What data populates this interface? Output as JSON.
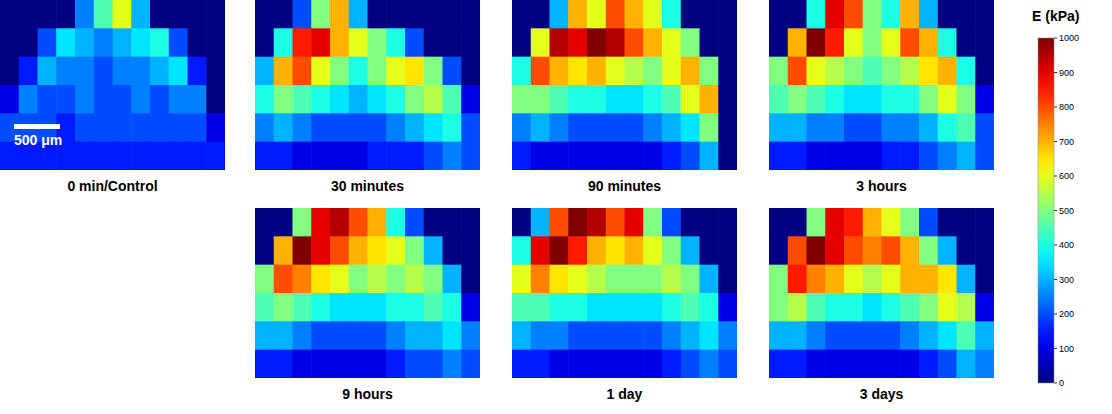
{
  "chart_data": {
    "type": "heatmap",
    "tick_labels": false,
    "scale_bar": "500 μm",
    "colorbar": {
      "label": "E (kPa)",
      "range": [
        0,
        1000
      ],
      "ticks": [
        0,
        100,
        200,
        300,
        400,
        500,
        600,
        700,
        800,
        900,
        1000
      ]
    },
    "panels": [
      {
        "title": "0 min/Control",
        "cells": [
          [
            0,
            0,
            0,
            0,
            250,
            450,
            600,
            300,
            0,
            0,
            0,
            0
          ],
          [
            0,
            0,
            200,
            350,
            300,
            250,
            300,
            350,
            400,
            200,
            0,
            0
          ],
          [
            0,
            150,
            300,
            250,
            250,
            200,
            250,
            250,
            300,
            350,
            150,
            0
          ],
          [
            100,
            250,
            200,
            200,
            250,
            200,
            200,
            250,
            200,
            250,
            250,
            0
          ],
          [
            200,
            200,
            200,
            150,
            200,
            200,
            200,
            200,
            200,
            200,
            200,
            100
          ],
          [
            150,
            150,
            150,
            150,
            150,
            150,
            150,
            150,
            150,
            150,
            150,
            150
          ]
        ]
      },
      {
        "title": "30 minutes",
        "cells": [
          [
            0,
            0,
            200,
            500,
            700,
            300,
            0,
            0,
            0,
            0,
            0,
            0
          ],
          [
            0,
            400,
            850,
            900,
            700,
            600,
            500,
            400,
            200,
            0,
            0,
            0
          ],
          [
            300,
            700,
            800,
            600,
            500,
            400,
            500,
            600,
            650,
            500,
            200,
            0
          ],
          [
            400,
            500,
            450,
            400,
            350,
            300,
            350,
            400,
            500,
            550,
            450,
            100
          ],
          [
            250,
            300,
            250,
            200,
            200,
            200,
            200,
            250,
            300,
            350,
            400,
            200
          ],
          [
            150,
            150,
            100,
            100,
            100,
            100,
            150,
            150,
            150,
            200,
            250,
            200
          ]
        ]
      },
      {
        "title": "90 minutes",
        "cells": [
          [
            0,
            0,
            300,
            700,
            600,
            800,
            700,
            600,
            400,
            0,
            0,
            0
          ],
          [
            0,
            600,
            950,
            900,
            1000,
            950,
            800,
            700,
            600,
            500,
            0,
            0
          ],
          [
            400,
            800,
            700,
            650,
            700,
            600,
            550,
            500,
            600,
            700,
            500,
            0
          ],
          [
            500,
            500,
            450,
            400,
            400,
            350,
            350,
            400,
            450,
            600,
            700,
            0
          ],
          [
            250,
            300,
            250,
            200,
            200,
            200,
            200,
            250,
            300,
            350,
            500,
            0
          ],
          [
            150,
            100,
            100,
            100,
            100,
            100,
            100,
            100,
            150,
            200,
            300,
            0
          ]
        ]
      },
      {
        "title": "3 hours",
        "cells": [
          [
            0,
            0,
            400,
            900,
            800,
            500,
            400,
            700,
            300,
            0,
            0,
            0
          ],
          [
            0,
            700,
            1000,
            850,
            600,
            500,
            600,
            800,
            700,
            400,
            0,
            0
          ],
          [
            500,
            800,
            600,
            550,
            500,
            450,
            500,
            550,
            650,
            700,
            400,
            0
          ],
          [
            450,
            500,
            450,
            400,
            350,
            350,
            400,
            400,
            500,
            600,
            500,
            100
          ],
          [
            300,
            300,
            250,
            250,
            200,
            200,
            250,
            250,
            300,
            400,
            450,
            200
          ],
          [
            150,
            150,
            100,
            100,
            100,
            100,
            150,
            150,
            200,
            250,
            300,
            200
          ]
        ]
      },
      {
        "title": "9 hours",
        "cells": [
          [
            0,
            0,
            500,
            900,
            950,
            800,
            700,
            400,
            200,
            0,
            0,
            0
          ],
          [
            0,
            700,
            1000,
            900,
            800,
            700,
            650,
            600,
            500,
            300,
            0,
            0
          ],
          [
            500,
            800,
            750,
            650,
            600,
            500,
            550,
            500,
            550,
            500,
            300,
            0
          ],
          [
            450,
            500,
            450,
            400,
            350,
            350,
            350,
            400,
            400,
            450,
            400,
            100
          ],
          [
            300,
            300,
            250,
            200,
            200,
            200,
            200,
            250,
            300,
            300,
            350,
            250
          ],
          [
            150,
            150,
            100,
            100,
            100,
            100,
            100,
            150,
            200,
            200,
            250,
            200
          ]
        ]
      },
      {
        "title": "1 day",
        "cells": [
          [
            0,
            300,
            800,
            1000,
            950,
            800,
            900,
            500,
            200,
            0,
            0,
            0
          ],
          [
            400,
            900,
            1000,
            850,
            700,
            650,
            700,
            600,
            500,
            300,
            0,
            0
          ],
          [
            600,
            750,
            650,
            600,
            550,
            500,
            500,
            500,
            550,
            500,
            300,
            0
          ],
          [
            450,
            450,
            400,
            400,
            350,
            350,
            350,
            350,
            400,
            450,
            400,
            100
          ],
          [
            300,
            250,
            250,
            200,
            200,
            200,
            200,
            200,
            250,
            300,
            350,
            250
          ],
          [
            150,
            150,
            100,
            100,
            100,
            100,
            100,
            100,
            150,
            200,
            250,
            200
          ]
        ]
      },
      {
        "title": "3 days",
        "cells": [
          [
            0,
            0,
            500,
            900,
            850,
            700,
            600,
            500,
            200,
            0,
            0,
            0
          ],
          [
            0,
            800,
            1000,
            900,
            800,
            750,
            800,
            700,
            500,
            300,
            0,
            0
          ],
          [
            500,
            850,
            750,
            700,
            600,
            550,
            600,
            700,
            700,
            650,
            300,
            0
          ],
          [
            500,
            550,
            450,
            400,
            400,
            350,
            400,
            450,
            500,
            600,
            550,
            100
          ],
          [
            300,
            300,
            250,
            200,
            200,
            200,
            200,
            250,
            300,
            350,
            450,
            300
          ],
          [
            150,
            150,
            100,
            100,
            100,
            100,
            100,
            100,
            150,
            200,
            300,
            250
          ]
        ]
      }
    ]
  }
}
